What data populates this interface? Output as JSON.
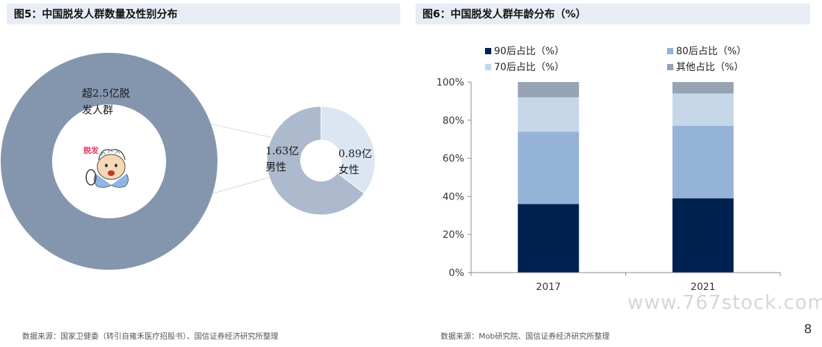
{
  "figure5": {
    "title": "图5：中国脱发人群数量及性别分布",
    "source": "数据来源：国家卫健委（转引自雍禾医疗招股书）、国信证券经济研究所整理",
    "icon_text": "脱发"
  },
  "figure6": {
    "title": "图6：中国脱发人群年龄分布（%）",
    "source": "数据来源：Mob研究院、国信证券经济研究所整理"
  },
  "watermark": "www.767stock.com",
  "page_number": "8",
  "chart_data": [
    {
      "type": "pie",
      "title": "",
      "big_ring": {
        "label_line1": "超2.5亿脱",
        "label_line2": "发人群",
        "value": 2.5,
        "unit": "亿",
        "color": "#8496ae"
      },
      "slices": [
        {
          "name": "男性",
          "value": 1.63,
          "display": "1.63亿",
          "color": "#adb9cc"
        },
        {
          "name": "女性",
          "value": 0.89,
          "display": "0.89亿",
          "color": "#dce6f2"
        }
      ]
    },
    {
      "type": "bar",
      "stacked": true,
      "title": "",
      "categories": [
        "2017",
        "2021"
      ],
      "ylim": [
        0,
        100
      ],
      "yticks": [
        "0%",
        "20%",
        "40%",
        "60%",
        "80%",
        "100%"
      ],
      "legend_position": "top",
      "series": [
        {
          "name": "90后占比（%）",
          "values": [
            36,
            39
          ],
          "color": "#002251"
        },
        {
          "name": "80后占比（%）",
          "values": [
            38,
            38
          ],
          "color": "#95b3d7"
        },
        {
          "name": "70后占比（%）",
          "values": [
            18,
            17
          ],
          "color": "#c6d7ea"
        },
        {
          "name": "其他占比（%）",
          "values": [
            8,
            6
          ],
          "color": "#95a3b3"
        }
      ]
    }
  ]
}
